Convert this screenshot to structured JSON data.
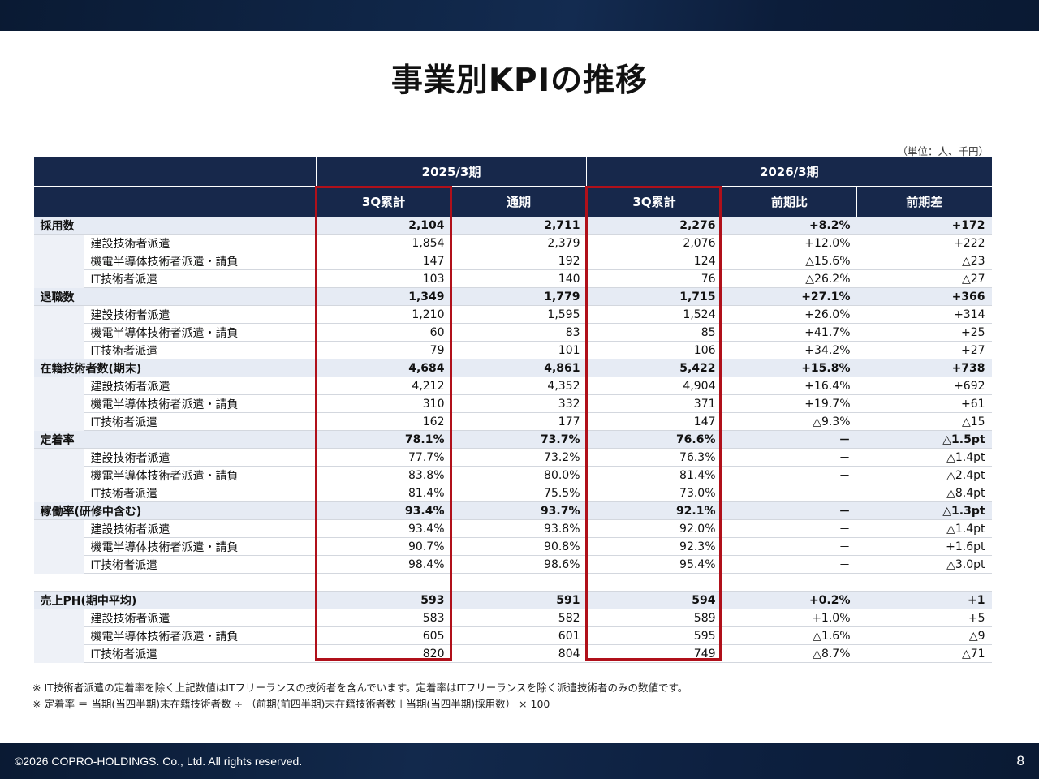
{
  "page": {
    "title": "事業別KPIの推移",
    "unit": "（単位：人、千円）",
    "footer_copyright": "©2026 COPRO-HOLDINGS. Co., Ltd. All rights reserved.",
    "page_number": "8"
  },
  "table": {
    "period_headers": [
      "2025/3期",
      "2026/3期"
    ],
    "column_headers": [
      "3Q累計",
      "通期",
      "3Q累計",
      "前期比",
      "前期差"
    ],
    "rows": [
      {
        "type": "cat",
        "label": "採用数",
        "values": [
          "2,104",
          "2,711",
          "2,276",
          "+8.2%",
          "+172"
        ]
      },
      {
        "type": "sub",
        "label": "建設技術者派遣",
        "values": [
          "1,854",
          "2,379",
          "2,076",
          "+12.0%",
          "+222"
        ]
      },
      {
        "type": "sub",
        "label": "機電半導体技術者派遣・請負",
        "values": [
          "147",
          "192",
          "124",
          "△15.6%",
          "△23"
        ]
      },
      {
        "type": "sub",
        "label": "IT技術者派遣",
        "values": [
          "103",
          "140",
          "76",
          "△26.2%",
          "△27"
        ]
      },
      {
        "type": "cat",
        "label": "退職数",
        "values": [
          "1,349",
          "1,779",
          "1,715",
          "+27.1%",
          "+366"
        ]
      },
      {
        "type": "sub",
        "label": "建設技術者派遣",
        "values": [
          "1,210",
          "1,595",
          "1,524",
          "+26.0%",
          "+314"
        ]
      },
      {
        "type": "sub",
        "label": "機電半導体技術者派遣・請負",
        "values": [
          "60",
          "83",
          "85",
          "+41.7%",
          "+25"
        ]
      },
      {
        "type": "sub",
        "label": "IT技術者派遣",
        "values": [
          "79",
          "101",
          "106",
          "+34.2%",
          "+27"
        ]
      },
      {
        "type": "cat",
        "label": "在籍技術者数(期末)",
        "values": [
          "4,684",
          "4,861",
          "5,422",
          "+15.8%",
          "+738"
        ]
      },
      {
        "type": "sub",
        "label": "建設技術者派遣",
        "values": [
          "4,212",
          "4,352",
          "4,904",
          "+16.4%",
          "+692"
        ]
      },
      {
        "type": "sub",
        "label": "機電半導体技術者派遣・請負",
        "values": [
          "310",
          "332",
          "371",
          "+19.7%",
          "+61"
        ]
      },
      {
        "type": "sub",
        "label": "IT技術者派遣",
        "values": [
          "162",
          "177",
          "147",
          "△9.3%",
          "△15"
        ]
      },
      {
        "type": "cat",
        "label": "定着率",
        "values": [
          "78.1%",
          "73.7%",
          "76.6%",
          "－",
          "△1.5pt"
        ]
      },
      {
        "type": "sub",
        "label": "建設技術者派遣",
        "values": [
          "77.7%",
          "73.2%",
          "76.3%",
          "－",
          "△1.4pt"
        ]
      },
      {
        "type": "sub",
        "label": "機電半導体技術者派遣・請負",
        "values": [
          "83.8%",
          "80.0%",
          "81.4%",
          "－",
          "△2.4pt"
        ]
      },
      {
        "type": "sub",
        "label": "IT技術者派遣",
        "values": [
          "81.4%",
          "75.5%",
          "73.0%",
          "－",
          "△8.4pt"
        ]
      },
      {
        "type": "cat",
        "label": "稼働率(研修中含む)",
        "values": [
          "93.4%",
          "93.7%",
          "92.1%",
          "－",
          "△1.3pt"
        ]
      },
      {
        "type": "sub",
        "label": "建設技術者派遣",
        "values": [
          "93.4%",
          "93.8%",
          "92.0%",
          "－",
          "△1.4pt"
        ]
      },
      {
        "type": "sub",
        "label": "機電半導体技術者派遣・請負",
        "values": [
          "90.7%",
          "90.8%",
          "92.3%",
          "－",
          "+1.6pt"
        ]
      },
      {
        "type": "sub",
        "label": "IT技術者派遣",
        "values": [
          "98.4%",
          "98.6%",
          "95.4%",
          "－",
          "△3.0pt"
        ]
      },
      {
        "type": "spacer",
        "label": "",
        "values": [
          "",
          "",
          "",
          "",
          ""
        ]
      },
      {
        "type": "cat",
        "label": "売上PH(期中平均)",
        "values": [
          "593",
          "591",
          "594",
          "+0.2%",
          "+1"
        ]
      },
      {
        "type": "sub",
        "label": "建設技術者派遣",
        "values": [
          "583",
          "582",
          "589",
          "+1.0%",
          "+5"
        ]
      },
      {
        "type": "sub",
        "label": "機電半導体技術者派遣・請負",
        "values": [
          "605",
          "601",
          "595",
          "△1.6%",
          "△9"
        ]
      },
      {
        "type": "sub",
        "label": "IT技術者派遣",
        "values": [
          "820",
          "804",
          "749",
          "△8.7%",
          "△71"
        ]
      }
    ]
  },
  "notes": [
    "※ IT技術者派遣の定着率を除く上記数値はITフリーランスの技術者を含んでいます。定着率はITフリーランスを除く派遣技術者のみの数値です。",
    "※ 定着率 ＝ 当期(当四半期)末在籍技術者数 ÷ （前期(前四半期)末在籍技術者数＋当期(当四半期)採用数） × 100"
  ],
  "colors": {
    "header_navy": "#17284b",
    "category_row": "#e6ebf4",
    "highlight_red": "#b0101a"
  }
}
